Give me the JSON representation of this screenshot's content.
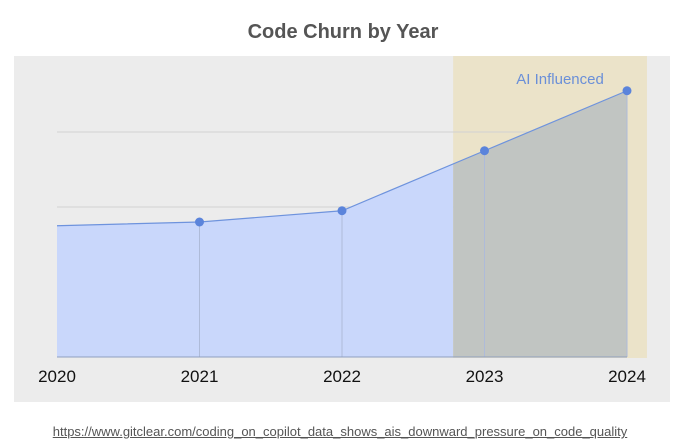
{
  "chart_data": {
    "type": "area",
    "title": "Code Churn by Year",
    "x": [
      "2020",
      "2021",
      "2022",
      "2023",
      "2024"
    ],
    "values": [
      0.175,
      0.18,
      0.195,
      0.275,
      0.355
    ],
    "ylim": [
      0,
      0.4
    ],
    "grid": true,
    "highlight": {
      "label": "AI Influenced",
      "from": "2023",
      "to": "2024"
    },
    "colors": {
      "area": "#c9d7fb",
      "line": "#6e93dd",
      "point": "#5b84db",
      "highlight": "#ebe3c9",
      "highlight_overlay": "#c1c5c2",
      "plot_bg": "#ececec"
    }
  },
  "source": "https://www.gitclear.com/coding_on_copilot_data_shows_ais_downward_pressure_on_code_quality"
}
